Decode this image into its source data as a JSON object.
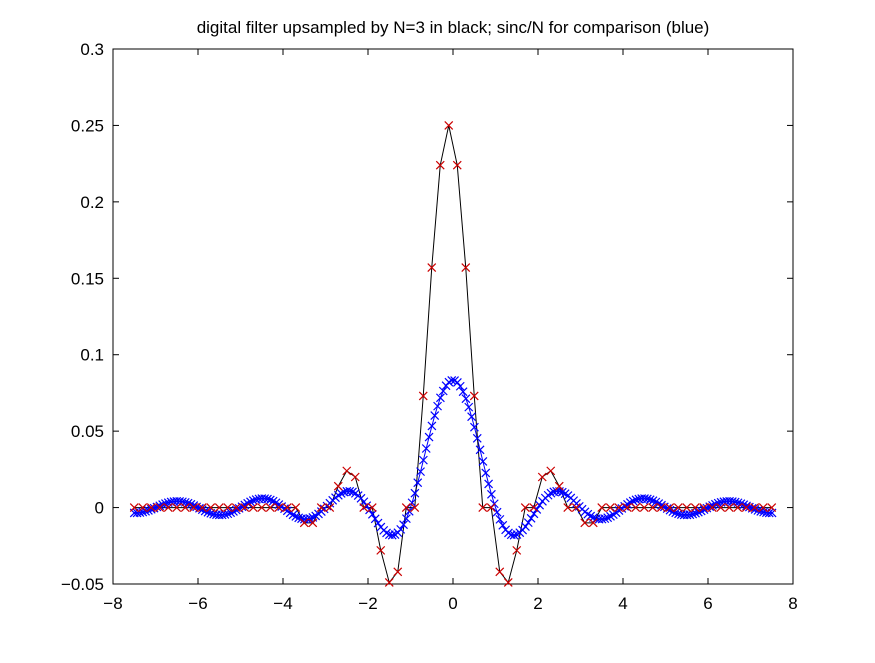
{
  "chart_data": {
    "type": "line",
    "title": "digital filter upsampled by N=3 in black; sinc/N for comparison (blue)",
    "xlabel": "",
    "ylabel": "",
    "xlim": [
      -8,
      8
    ],
    "ylim": [
      -0.05,
      0.3
    ],
    "x_ticks": [
      "−8",
      "−6",
      "−4",
      "−2",
      "0",
      "2",
      "4",
      "6",
      "8"
    ],
    "y_ticks": [
      "−0.05",
      "0",
      "0.05",
      "0.1",
      "0.15",
      "0.2",
      "0.25",
      "0.3"
    ],
    "x_tick_values": [
      -8,
      -6,
      -4,
      -2,
      0,
      2,
      4,
      6,
      8
    ],
    "y_tick_values": [
      -0.05,
      0,
      0.05,
      0.1,
      0.15,
      0.2,
      0.25,
      0.3
    ],
    "grid": false,
    "legend": "none",
    "series": [
      {
        "color": "#000000",
        "marker": "x",
        "marker_color": "#cc0000",
        "x_start": -7.5,
        "x_step": 0.2,
        "count": 76,
        "nonzero_points": [
          {
            "x": -3.5,
            "y": -0.01
          },
          {
            "x": -3.3,
            "y": -0.01
          },
          {
            "x": -2.7,
            "y": 0.014
          },
          {
            "x": -2.5,
            "y": 0.024
          },
          {
            "x": -2.3,
            "y": 0.02
          },
          {
            "x": -1.7,
            "y": -0.028
          },
          {
            "x": -1.5,
            "y": -0.049
          },
          {
            "x": -1.3,
            "y": -0.042
          },
          {
            "x": -0.7,
            "y": 0.073
          },
          {
            "x": -0.5,
            "y": 0.157
          },
          {
            "x": -0.3,
            "y": 0.224
          },
          {
            "x": -0.1,
            "y": 0.25
          },
          {
            "x": 0.1,
            "y": 0.224
          },
          {
            "x": 0.3,
            "y": 0.157
          },
          {
            "x": 0.5,
            "y": 0.073
          },
          {
            "x": 1.1,
            "y": -0.042
          },
          {
            "x": 1.3,
            "y": -0.049
          },
          {
            "x": 1.5,
            "y": -0.028
          },
          {
            "x": 2.1,
            "y": 0.02
          },
          {
            "x": 2.3,
            "y": 0.024
          },
          {
            "x": 2.5,
            "y": 0.014
          },
          {
            "x": 3.1,
            "y": -0.01
          },
          {
            "x": 3.3,
            "y": -0.01
          }
        ]
      },
      {
        "color": "#0000ff",
        "marker": "x",
        "marker_color": "#0000ff",
        "x_start": -7.5,
        "x_step": 0.0667,
        "count": 226,
        "amplitude": 0.0833,
        "center": 0,
        "zero_spacing": 1
      }
    ]
  }
}
